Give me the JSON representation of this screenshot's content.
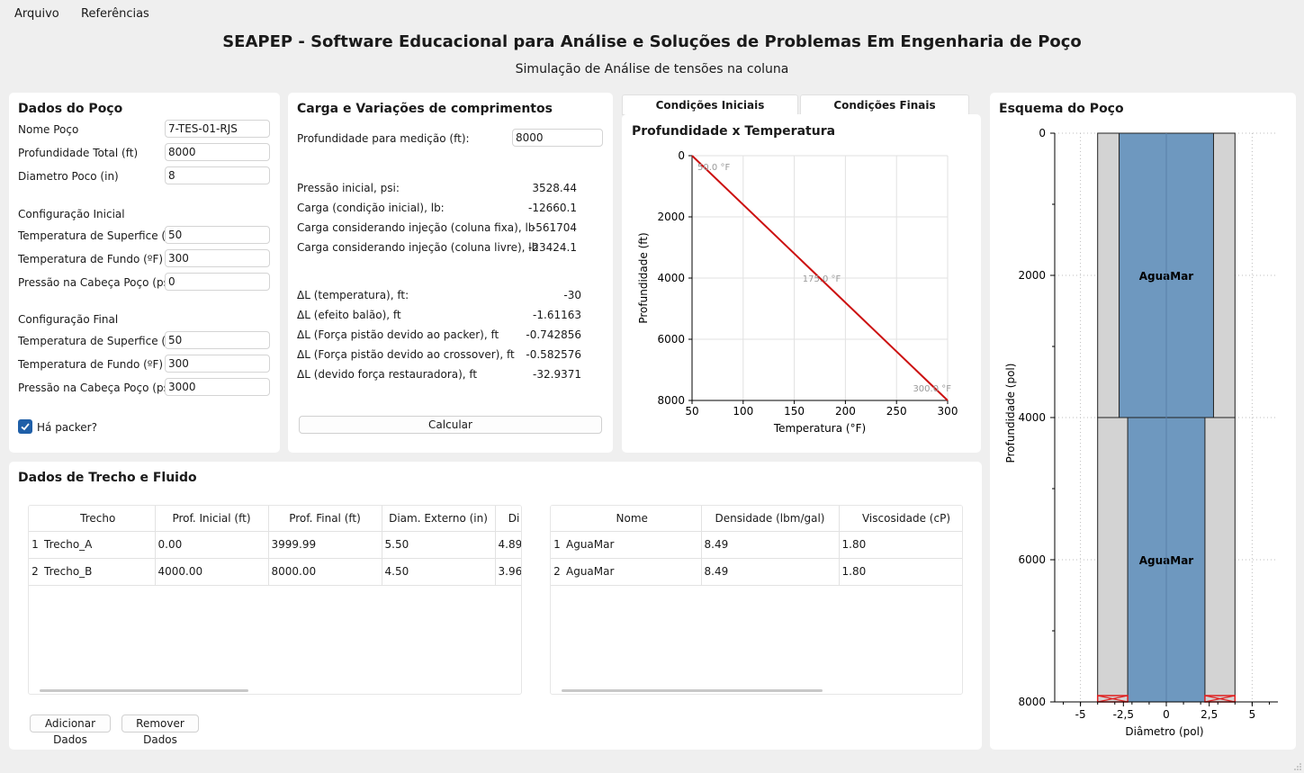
{
  "menu": {
    "arquivo": "Arquivo",
    "referencias": "Referências"
  },
  "app": {
    "title": "SEAPEP - Software Educacional para Análise e Soluções de Problemas Em Engenharia de Poço",
    "subtitle": "Simulação de Análise de tensões na coluna"
  },
  "dados_poco": {
    "title": "Dados do Poço",
    "nome_label": "Nome Poço",
    "nome_value": "7-TES-01-RJS",
    "prof_label": "Profundidade Total (ft)",
    "prof_value": "8000",
    "diam_label": "Diametro Poco (in)",
    "diam_value": "8",
    "cfg_inicial": "Configuração Inicial",
    "ini_temp_sup_label": "Temperatura de Superfice (ºF)",
    "ini_temp_sup_value": "50",
    "ini_temp_fundo_label": "Temperatura de Fundo (ºF)",
    "ini_temp_fundo_value": "300",
    "ini_pressao_label": "Pressão na Cabeça Poço (psi)",
    "ini_pressao_value": "0",
    "cfg_final": "Configuração Final",
    "fin_temp_sup_label": "Temperatura de Superfice (ºF)",
    "fin_temp_sup_value": "50",
    "fin_temp_fundo_label": "Temperatura de Fundo (ºF)",
    "fin_temp_fundo_value": "300",
    "fin_pressao_label": "Pressão na Cabeça Poço (psi)",
    "fin_pressao_value": "3000",
    "packer_label": "Há packer?",
    "packer_checked": true
  },
  "carga": {
    "title": "Carga e Variações de comprimentos",
    "prof_med_label": "Profundidade para medição (ft):",
    "prof_med_value": "8000",
    "rows1": [
      {
        "label": "Pressão inicial, psi:",
        "value": "3528.44"
      },
      {
        "label": "Carga (condição inicial), lb:",
        "value": "-12660.1"
      },
      {
        "label": "Carga considerando injeção (coluna fixa), lb",
        "value": "-561704"
      },
      {
        "label": "Carga considerando injeção (coluna livre), lb",
        "value": "-23424.1"
      }
    ],
    "rows2": [
      {
        "label": "ΔL (temperatura), ft:",
        "value": "-30"
      },
      {
        "label": "ΔL (efeito balão), ft",
        "value": "-1.61163"
      },
      {
        "label": "ΔL (Força pistão devido ao packer), ft",
        "value": "-0.742856"
      },
      {
        "label": "ΔL (Força pistão devido ao crossover), ft",
        "value": "-0.582576"
      },
      {
        "label": "ΔL (devido força restauradora), ft",
        "value": "-32.9371"
      }
    ],
    "calc_button": "Calcular"
  },
  "tabs": {
    "iniciais": "Condições Iniciais",
    "finais": "Condições Finais"
  },
  "chart_temp": {
    "type": "line",
    "title": "Profundidade x Temperatura",
    "xlabel": "Temperatura (°F)",
    "ylabel": "Profundidade (ft)",
    "xlim": [
      50,
      300
    ],
    "ylim": [
      0,
      8000
    ],
    "xticks": [
      50,
      100,
      150,
      200,
      250,
      300
    ],
    "yticks": [
      0,
      2000,
      4000,
      6000,
      8000
    ],
    "x": [
      50,
      300
    ],
    "y": [
      0,
      8000
    ],
    "line_color": "#cc1111",
    "annotations": [
      {
        "text": "50.0 °F",
        "x": 50,
        "y": 0
      },
      {
        "text": "175.0 °F",
        "x": 175,
        "y": 4000
      },
      {
        "text": "300.0 °F",
        "x": 300,
        "y": 8000
      }
    ]
  },
  "esquema": {
    "title": "Esquema do Poço",
    "xlabel": "Diâmetro (pol)",
    "ylabel": "Profundidade (pol)",
    "xlim": [
      -6.5,
      6.5
    ],
    "ylim": [
      0,
      8000
    ],
    "xticks": [
      "-5",
      "-2,5",
      "0",
      "2,5",
      "5"
    ],
    "xtick_values": [
      -5,
      -2.5,
      0,
      2.5,
      5
    ],
    "yticks": [
      0,
      2000,
      4000,
      6000,
      8000
    ],
    "well_diameter": 8,
    "segments": [
      {
        "fluid": "AguaMar",
        "top": 0,
        "bottom": 3999.99,
        "od": 5.5
      },
      {
        "fluid": "AguaMar",
        "top": 4000,
        "bottom": 8000,
        "od": 4.5
      }
    ],
    "annulus_color": "#d3d3d3",
    "fluid_color": "#6e98bf",
    "packer_color": "#e02020"
  },
  "trecho_fluido": {
    "title": "Dados de Trecho e Fluido",
    "trecho_headers": [
      "Trecho",
      "Prof. Inicial (ft)",
      "Prof. Final (ft)",
      "Diam. Externo (in)",
      "Di"
    ],
    "trecho_rows": [
      {
        "n": "1",
        "trecho": "Trecho_A",
        "ini": "0.00",
        "fim": "3999.99",
        "de": "5.50",
        "di": "4.89"
      },
      {
        "n": "2",
        "trecho": "Trecho_B",
        "ini": "4000.00",
        "fim": "8000.00",
        "de": "4.50",
        "di": "3.96"
      }
    ],
    "fluido_headers": [
      "Nome",
      "Densidade (lbm/gal)",
      "Viscosidade (cP)"
    ],
    "fluido_rows": [
      {
        "n": "1",
        "nome": "AguaMar",
        "dens": "8.49",
        "visc": "1.80"
      },
      {
        "n": "2",
        "nome": "AguaMar",
        "dens": "8.49",
        "visc": "1.80"
      }
    ],
    "add_button": "Adicionar Dados",
    "remove_button": "Remover Dados"
  }
}
